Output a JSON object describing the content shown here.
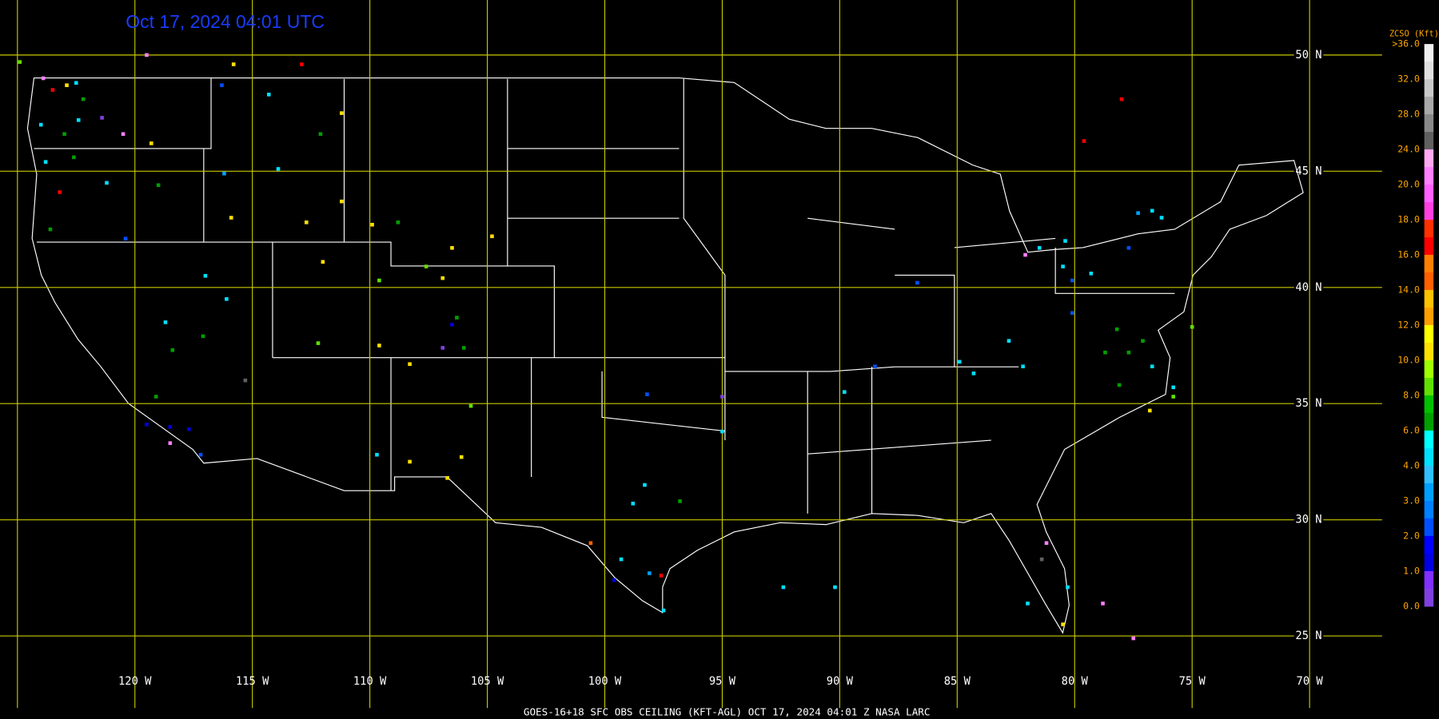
{
  "map": {
    "timestamp": "Oct 17, 2024 04:01 UTC",
    "footer": "GOES-16+18  SFC OBS CEILING (KFT-AGL)  OCT 17, 2024 04:01 Z   NASA LARC",
    "lat_lines": [
      {
        "value": 50,
        "label": "50 N"
      },
      {
        "value": 45,
        "label": "45 N"
      },
      {
        "value": 40,
        "label": "40 N"
      },
      {
        "value": 35,
        "label": "35 N"
      },
      {
        "value": 30,
        "label": "30 N"
      },
      {
        "value": 25,
        "label": "25 N"
      }
    ],
    "lon_lines": [
      {
        "value": -125,
        "label": ""
      },
      {
        "value": -120,
        "label": "120 W"
      },
      {
        "value": -115,
        "label": "115 W"
      },
      {
        "value": -110,
        "label": "110 W"
      },
      {
        "value": -105,
        "label": "105 W"
      },
      {
        "value": -100,
        "label": "100 W"
      },
      {
        "value": -95,
        "label": "95 W"
      },
      {
        "value": -90,
        "label": "90 W"
      },
      {
        "value": -85,
        "label": "85 W"
      },
      {
        "value": -80,
        "label": "80 W"
      },
      {
        "value": -75,
        "label": "75 W"
      },
      {
        "value": -70,
        "label": "70 W"
      }
    ],
    "colorbar": {
      "title": "ZCSO (Kft)",
      "levels": [
        {
          "value": 36,
          "label": ">36.0"
        },
        {
          "value": 32,
          "label": "32.0"
        },
        {
          "value": 28,
          "label": "28.0"
        },
        {
          "value": 24,
          "label": "24.0"
        },
        {
          "value": 20,
          "label": "20.0"
        },
        {
          "value": 18,
          "label": "18.0"
        },
        {
          "value": 16,
          "label": "16.0"
        },
        {
          "value": 14,
          "label": "14.0"
        },
        {
          "value": 12,
          "label": "12.0"
        },
        {
          "value": 10,
          "label": "10.0"
        },
        {
          "value": 8,
          "label": "8.0"
        },
        {
          "value": 6,
          "label": "6.0"
        },
        {
          "value": 4,
          "label": "4.0"
        },
        {
          "value": 3,
          "label": "3.0"
        },
        {
          "value": 2,
          "label": "2.0"
        },
        {
          "value": 1,
          "label": "1.0"
        },
        {
          "value": 0,
          "label": "0.0"
        }
      ],
      "colors": [
        "#f0f0f0",
        "#e0e0e0",
        "#c8c8c8",
        "#a8a8a8",
        "#888888",
        "#606060",
        "#ffa8f0",
        "#ff80ff",
        "#ff60ff",
        "#ff40e0",
        "#ff3000",
        "#ff0000",
        "#ff8000",
        "#ff6000",
        "#ffc000",
        "#ffa000",
        "#ffff00",
        "#ffe000",
        "#a0ff00",
        "#60e000",
        "#00c000",
        "#00a000",
        "#00ffff",
        "#00e0ff",
        "#30c0ff",
        "#00a0ff",
        "#0080ff",
        "#0050ff",
        "#0000ff",
        "#0000e0",
        "#8030ff",
        "#8040e0"
      ]
    },
    "stations": [
      {
        "lon": -124.9,
        "lat": 49.7,
        "value": 9
      },
      {
        "lon": -123.9,
        "lat": 49.0,
        "value": 22
      },
      {
        "lon": -122.9,
        "lat": 48.7,
        "value": 11
      },
      {
        "lon": -122.5,
        "lat": 48.8,
        "value": 5
      },
      {
        "lon": -123.5,
        "lat": 48.5,
        "value": 17
      },
      {
        "lon": -122.2,
        "lat": 48.1,
        "value": 7
      },
      {
        "lon": -122.4,
        "lat": 47.2,
        "value": 5
      },
      {
        "lon": -121.4,
        "lat": 47.3,
        "value": 0.5
      },
      {
        "lon": -124.0,
        "lat": 47.0,
        "value": 5
      },
      {
        "lon": -123.0,
        "lat": 46.6,
        "value": 7
      },
      {
        "lon": -120.5,
        "lat": 46.6,
        "value": 22
      },
      {
        "lon": -119.5,
        "lat": 50.0,
        "value": 22
      },
      {
        "lon": -115.8,
        "lat": 49.6,
        "value": 11
      },
      {
        "lon": -112.9,
        "lat": 49.6,
        "value": 17
      },
      {
        "lon": -116.3,
        "lat": 48.7,
        "value": 2
      },
      {
        "lon": -114.3,
        "lat": 48.3,
        "value": 5
      },
      {
        "lon": -111.2,
        "lat": 47.5,
        "value": 11
      },
      {
        "lon": -112.1,
        "lat": 46.6,
        "value": 7
      },
      {
        "lon": -119.3,
        "lat": 46.2,
        "value": 11
      },
      {
        "lon": -122.6,
        "lat": 45.6,
        "value": 7
      },
      {
        "lon": -123.8,
        "lat": 45.4,
        "value": 5
      },
      {
        "lon": -121.2,
        "lat": 44.5,
        "value": 5
      },
      {
        "lon": -123.2,
        "lat": 44.1,
        "value": 17
      },
      {
        "lon": -119.0,
        "lat": 44.4,
        "value": 7
      },
      {
        "lon": -116.2,
        "lat": 44.9,
        "value": 3
      },
      {
        "lon": -113.9,
        "lat": 45.1,
        "value": 5
      },
      {
        "lon": -111.2,
        "lat": 43.7,
        "value": 11
      },
      {
        "lon": -115.9,
        "lat": 43.0,
        "value": 11
      },
      {
        "lon": -112.7,
        "lat": 42.8,
        "value": 11
      },
      {
        "lon": -123.6,
        "lat": 42.5,
        "value": 7
      },
      {
        "lon": -120.4,
        "lat": 42.1,
        "value": 2.5
      },
      {
        "lon": -109.9,
        "lat": 42.7,
        "value": 11
      },
      {
        "lon": -108.8,
        "lat": 42.8,
        "value": 7
      },
      {
        "lon": -106.5,
        "lat": 41.7,
        "value": 11
      },
      {
        "lon": -104.8,
        "lat": 42.2,
        "value": 11
      },
      {
        "lon": -117.0,
        "lat": 40.5,
        "value": 4
      },
      {
        "lon": -112.0,
        "lat": 41.1,
        "value": 11
      },
      {
        "lon": -109.6,
        "lat": 40.3,
        "value": 9
      },
      {
        "lon": -107.6,
        "lat": 40.9,
        "value": 8.5
      },
      {
        "lon": -106.9,
        "lat": 40.4,
        "value": 11
      },
      {
        "lon": -116.1,
        "lat": 39.5,
        "value": 4
      },
      {
        "lon": -118.7,
        "lat": 38.5,
        "value": 4
      },
      {
        "lon": -117.1,
        "lat": 37.9,
        "value": 7
      },
      {
        "lon": -118.4,
        "lat": 37.3,
        "value": 7
      },
      {
        "lon": -112.2,
        "lat": 37.6,
        "value": 9
      },
      {
        "lon": -109.6,
        "lat": 37.5,
        "value": 11
      },
      {
        "lon": -106.3,
        "lat": 38.7,
        "value": 7
      },
      {
        "lon": -106.5,
        "lat": 38.4,
        "value": 1.5
      },
      {
        "lon": -106.9,
        "lat": 37.4,
        "value": 0.5
      },
      {
        "lon": -106.0,
        "lat": 37.4,
        "value": 7
      },
      {
        "lon": -108.3,
        "lat": 36.7,
        "value": 11
      },
      {
        "lon": -119.1,
        "lat": 35.3,
        "value": 7
      },
      {
        "lon": -115.3,
        "lat": 36.0,
        "value": 26
      },
      {
        "lon": -119.5,
        "lat": 34.1,
        "value": 1.5
      },
      {
        "lon": -118.5,
        "lat": 34.0,
        "value": 1.5
      },
      {
        "lon": -117.7,
        "lat": 33.9,
        "value": 1.5
      },
      {
        "lon": -117.2,
        "lat": 32.8,
        "value": 2
      },
      {
        "lon": -118.5,
        "lat": 33.3,
        "value": 22
      },
      {
        "lon": -109.7,
        "lat": 32.8,
        "value": 5
      },
      {
        "lon": -108.3,
        "lat": 32.5,
        "value": 11
      },
      {
        "lon": -106.1,
        "lat": 32.7,
        "value": 11
      },
      {
        "lon": -105.7,
        "lat": 34.9,
        "value": 9
      },
      {
        "lon": -106.7,
        "lat": 31.8,
        "value": 11
      },
      {
        "lon": -98.2,
        "lat": 35.4,
        "value": 2
      },
      {
        "lon": -95.0,
        "lat": 35.3,
        "value": 0.5
      },
      {
        "lon": -95.0,
        "lat": 33.8,
        "value": 5
      },
      {
        "lon": -98.3,
        "lat": 31.5,
        "value": 5
      },
      {
        "lon": -98.8,
        "lat": 30.7,
        "value": 4
      },
      {
        "lon": -96.8,
        "lat": 30.8,
        "value": 7
      },
      {
        "lon": -100.6,
        "lat": 29.0,
        "value": 15
      },
      {
        "lon": -99.3,
        "lat": 28.3,
        "value": 5
      },
      {
        "lon": -98.1,
        "lat": 27.7,
        "value": 3
      },
      {
        "lon": -97.6,
        "lat": 27.6,
        "value": 17
      },
      {
        "lon": -99.6,
        "lat": 27.4,
        "value": 1.5
      },
      {
        "lon": -97.5,
        "lat": 26.1,
        "value": 5
      },
      {
        "lon": -92.4,
        "lat": 27.1,
        "value": 5
      },
      {
        "lon": -90.2,
        "lat": 27.1,
        "value": 5
      },
      {
        "lon": -89.8,
        "lat": 35.5,
        "value": 4
      },
      {
        "lon": -88.5,
        "lat": 36.6,
        "value": 2.5
      },
      {
        "lon": -86.7,
        "lat": 40.2,
        "value": 2.5
      },
      {
        "lon": -84.9,
        "lat": 36.8,
        "value": 5
      },
      {
        "lon": -84.3,
        "lat": 36.3,
        "value": 5
      },
      {
        "lon": -82.2,
        "lat": 36.6,
        "value": 5
      },
      {
        "lon": -82.8,
        "lat": 37.7,
        "value": 5
      },
      {
        "lon": -82.1,
        "lat": 41.4,
        "value": 22
      },
      {
        "lon": -81.5,
        "lat": 41.7,
        "value": 5
      },
      {
        "lon": -80.5,
        "lat": 40.9,
        "value": 5
      },
      {
        "lon": -80.1,
        "lat": 40.3,
        "value": 2
      },
      {
        "lon": -80.4,
        "lat": 42.0,
        "value": 5
      },
      {
        "lon": -79.3,
        "lat": 40.6,
        "value": 5
      },
      {
        "lon": -80.1,
        "lat": 38.9,
        "value": 2.5
      },
      {
        "lon": -78.2,
        "lat": 38.2,
        "value": 7
      },
      {
        "lon": -78.7,
        "lat": 37.2,
        "value": 7
      },
      {
        "lon": -77.7,
        "lat": 37.2,
        "value": 7
      },
      {
        "lon": -77.1,
        "lat": 37.7,
        "value": 7
      },
      {
        "lon": -76.7,
        "lat": 36.6,
        "value": 5
      },
      {
        "lon": -78.1,
        "lat": 35.8,
        "value": 7
      },
      {
        "lon": -76.8,
        "lat": 34.7,
        "value": 11
      },
      {
        "lon": -75.8,
        "lat": 35.3,
        "value": 9
      },
      {
        "lon": -77.7,
        "lat": 41.7,
        "value": 2.5
      },
      {
        "lon": -76.7,
        "lat": 43.3,
        "value": 5
      },
      {
        "lon": -76.3,
        "lat": 43.0,
        "value": 5
      },
      {
        "lon": -77.3,
        "lat": 43.2,
        "value": 3
      },
      {
        "lon": -79.6,
        "lat": 46.3,
        "value": 17
      },
      {
        "lon": -78.0,
        "lat": 48.1,
        "value": 17
      },
      {
        "lon": -81.4,
        "lat": 28.3,
        "value": 26
      },
      {
        "lon": -80.3,
        "lat": 27.1,
        "value": 5
      },
      {
        "lon": -81.2,
        "lat": 29.0,
        "value": 22
      },
      {
        "lon": -82.0,
        "lat": 26.4,
        "value": 5
      },
      {
        "lon": -80.5,
        "lat": 25.5,
        "value": 11
      },
      {
        "lon": -78.8,
        "lat": 26.4,
        "value": 22
      },
      {
        "lon": -77.5,
        "lat": 24.9,
        "value": 22
      },
      {
        "lon": -75.0,
        "lat": 38.3,
        "value": 9
      },
      {
        "lon": -75.8,
        "lat": 35.7,
        "value": 5
      }
    ]
  }
}
